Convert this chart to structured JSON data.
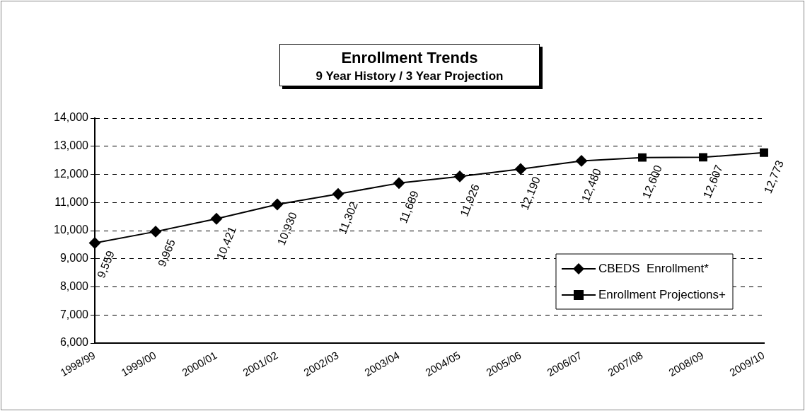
{
  "chart_data": {
    "type": "line",
    "title": "Enrollment Trends",
    "subtitle": "9 Year History / 3 Year Projection",
    "categories": [
      "1998/99",
      "1999/00",
      "2000/01",
      "2001/02",
      "2002/03",
      "2003/04",
      "2004/05",
      "2005/06",
      "2006/07",
      "2007/08",
      "2008/09",
      "2009/10"
    ],
    "series": [
      {
        "name": "CBEDS  Enrollment*",
        "color": "#000000",
        "marker": "diamond",
        "values": [
          9559,
          9965,
          10421,
          10930,
          11302,
          11689,
          11926,
          12190,
          12480,
          null,
          null,
          null
        ],
        "value_labels": [
          "9,559",
          "9,965",
          "10,421",
          "10,930",
          "11,302",
          "11,689",
          "11,926",
          "12,190",
          "12,480",
          null,
          null,
          null
        ]
      },
      {
        "name": "Enrollment Projections+",
        "color": "#000000",
        "marker": "square",
        "values": [
          null,
          null,
          null,
          null,
          null,
          null,
          null,
          null,
          12480,
          12600,
          12607,
          12773
        ],
        "value_labels": [
          null,
          null,
          null,
          null,
          null,
          null,
          null,
          null,
          null,
          "12,600",
          "12,607",
          "12,773"
        ]
      }
    ],
    "ylim": [
      6000,
      14000
    ],
    "yticks": [
      {
        "value": 6000,
        "label": "6,000"
      },
      {
        "value": 7000,
        "label": "7,000"
      },
      {
        "value": 8000,
        "label": "8,000"
      },
      {
        "value": 9000,
        "label": "9,000"
      },
      {
        "value": 10000,
        "label": "10,000"
      },
      {
        "value": 11000,
        "label": "11,000"
      },
      {
        "value": 12000,
        "label": "12,000"
      },
      {
        "value": 13000,
        "label": "13,000"
      },
      {
        "value": 14000,
        "label": "14,000"
      }
    ],
    "grid": "y",
    "legend": "bottom right",
    "line_style": "solid"
  }
}
